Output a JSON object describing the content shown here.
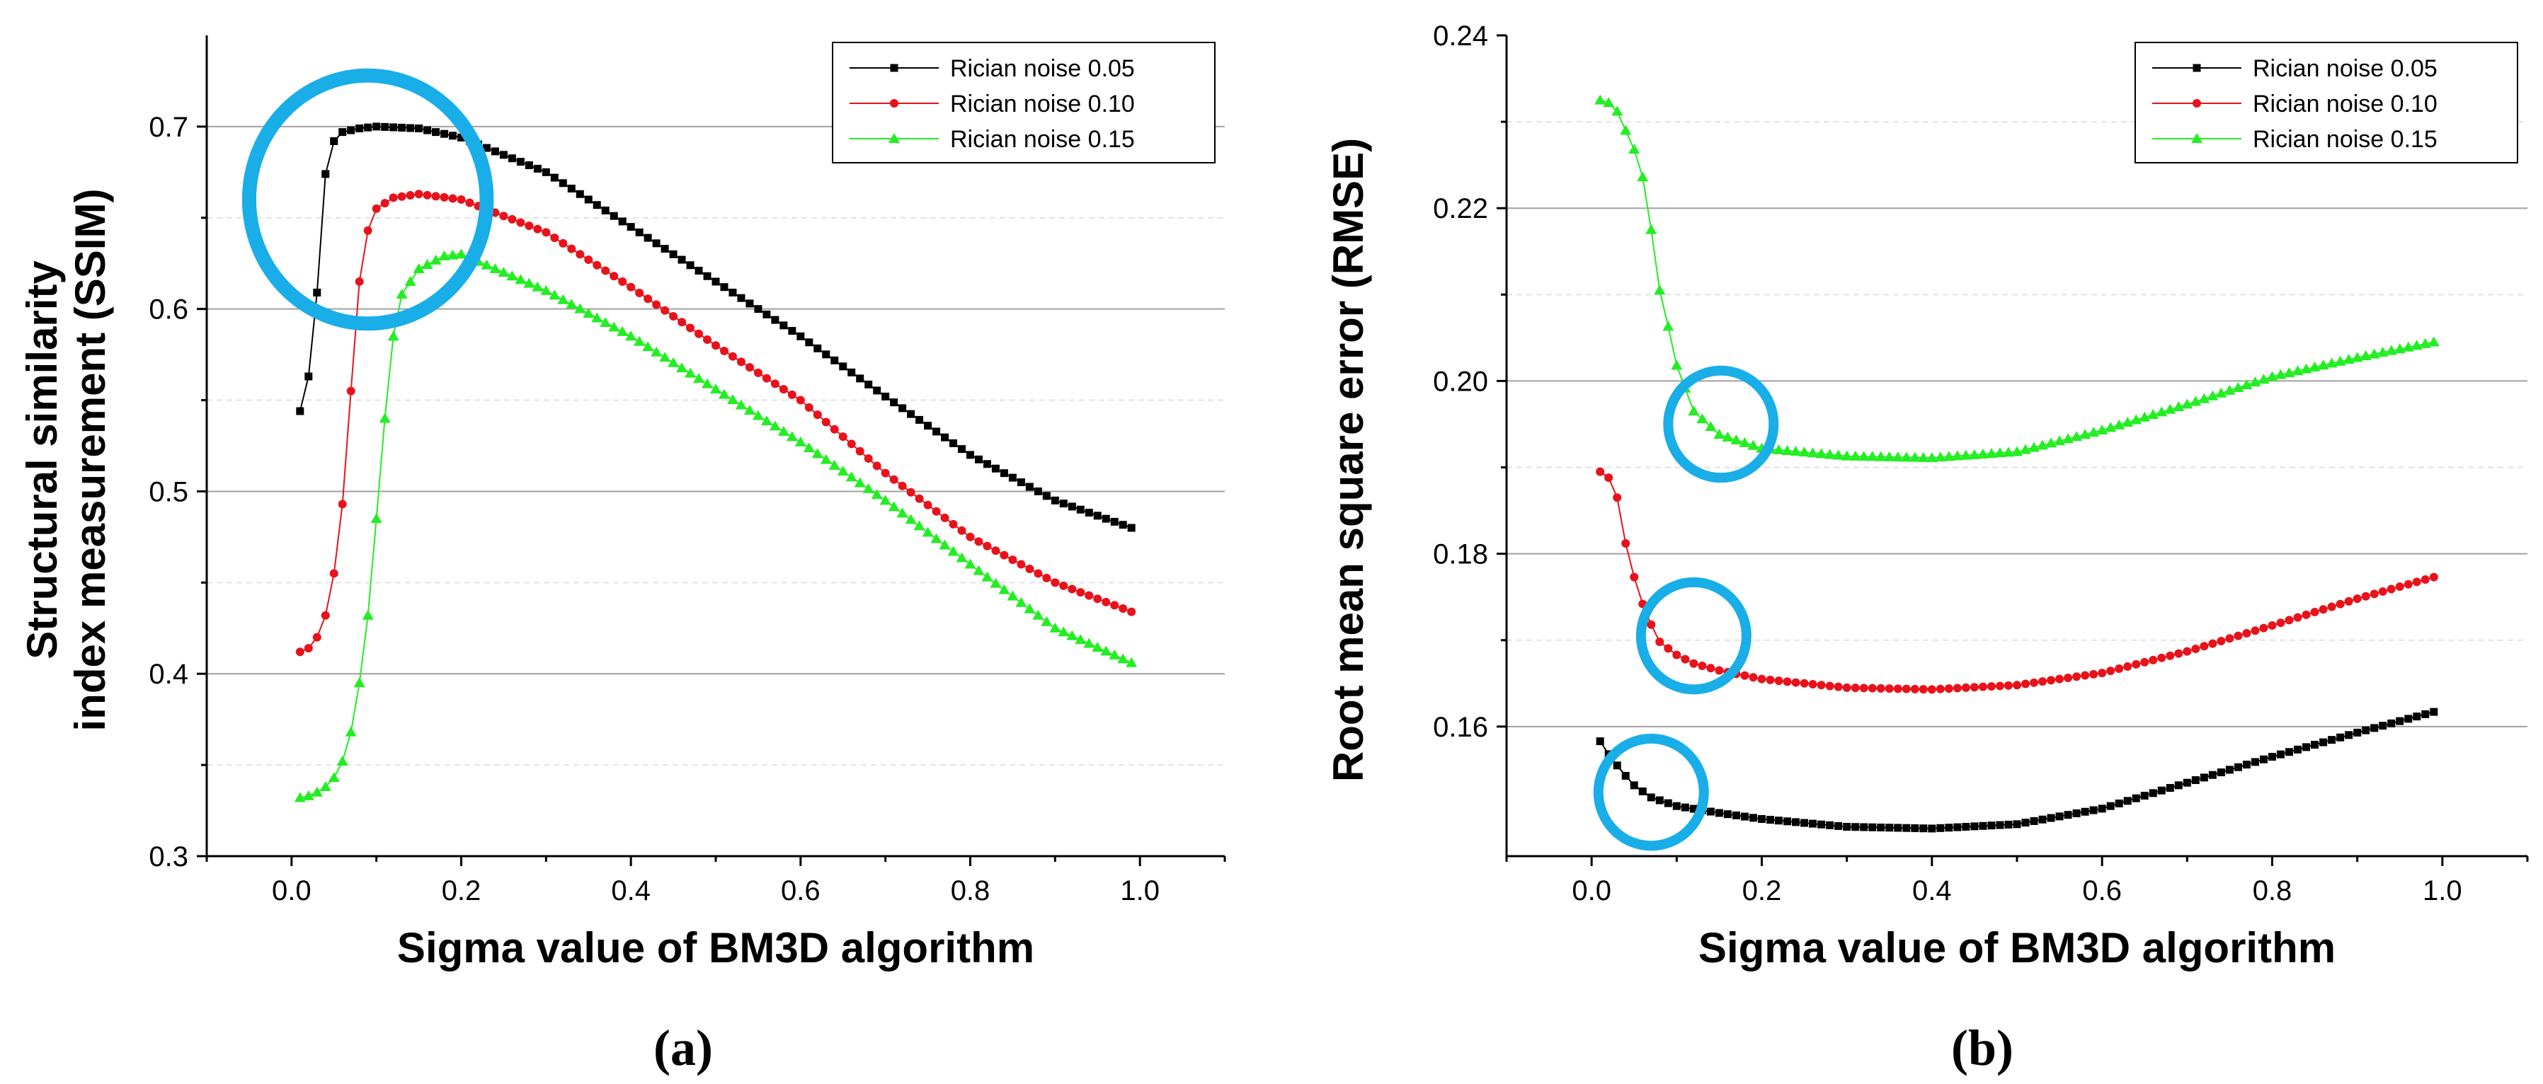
{
  "colors": {
    "series_a": "#000000",
    "series_b": "#e8121b",
    "series_c": "#22ee22",
    "highlight_circle": "#19aee8",
    "grid_major": "#a0a0a0",
    "grid_minor": "#e2e2e2"
  },
  "chart_data": [
    {
      "type": "line",
      "panel_label": "(a)",
      "xlabel": "Sigma value of BM3D algorithm",
      "ylabel_lines": [
        "Structural similarity",
        "index measurement (SSIM)"
      ],
      "xlim": [
        -0.1,
        1.1
      ],
      "ylim": [
        0.3,
        0.75
      ],
      "xticks": [
        0.0,
        0.2,
        0.4,
        0.6,
        0.8,
        1.0
      ],
      "xtick_labels": [
        "0.0",
        "0.2",
        "0.4",
        "0.6",
        "0.8",
        "1.0"
      ],
      "yticks": [
        0.3,
        0.4,
        0.5,
        0.6,
        0.7
      ],
      "ytick_labels": [
        "0.3",
        "0.4",
        "0.5",
        "0.6",
        "0.7"
      ],
      "grid": "horizontal",
      "legend_position": "top-right",
      "series": [
        {
          "name": "Rician noise 0.05",
          "marker": "square",
          "points": [
            [
              0.01,
              0.544
            ],
            [
              0.02,
              0.563
            ],
            [
              0.03,
              0.609
            ],
            [
              0.04,
              0.674
            ],
            [
              0.05,
              0.692
            ],
            [
              0.06,
              0.697
            ],
            [
              0.08,
              0.699
            ],
            [
              0.1,
              0.7
            ],
            [
              0.15,
              0.699
            ],
            [
              0.2,
              0.694
            ],
            [
              0.3,
              0.675
            ],
            [
              0.4,
              0.645
            ],
            [
              0.5,
              0.615
            ],
            [
              0.6,
              0.585
            ],
            [
              0.7,
              0.552
            ],
            [
              0.8,
              0.52
            ],
            [
              0.9,
              0.495
            ],
            [
              0.99,
              0.48
            ]
          ]
        },
        {
          "name": "Rician noise 0.10",
          "marker": "circle",
          "points": [
            [
              0.01,
              0.412
            ],
            [
              0.02,
              0.414
            ],
            [
              0.03,
              0.42
            ],
            [
              0.04,
              0.432
            ],
            [
              0.05,
              0.455
            ],
            [
              0.06,
              0.493
            ],
            [
              0.07,
              0.555
            ],
            [
              0.08,
              0.615
            ],
            [
              0.09,
              0.643
            ],
            [
              0.1,
              0.655
            ],
            [
              0.12,
              0.661
            ],
            [
              0.15,
              0.663
            ],
            [
              0.2,
              0.66
            ],
            [
              0.3,
              0.642
            ],
            [
              0.4,
              0.612
            ],
            [
              0.5,
              0.58
            ],
            [
              0.6,
              0.55
            ],
            [
              0.7,
              0.51
            ],
            [
              0.8,
              0.475
            ],
            [
              0.9,
              0.45
            ],
            [
              0.99,
              0.434
            ]
          ]
        },
        {
          "name": "Rician noise 0.15",
          "marker": "triangle",
          "points": [
            [
              0.01,
              0.332
            ],
            [
              0.02,
              0.333
            ],
            [
              0.03,
              0.335
            ],
            [
              0.04,
              0.338
            ],
            [
              0.05,
              0.343
            ],
            [
              0.06,
              0.352
            ],
            [
              0.07,
              0.368
            ],
            [
              0.08,
              0.395
            ],
            [
              0.09,
              0.432
            ],
            [
              0.1,
              0.485
            ],
            [
              0.11,
              0.54
            ],
            [
              0.12,
              0.585
            ],
            [
              0.13,
              0.608
            ],
            [
              0.15,
              0.622
            ],
            [
              0.18,
              0.629
            ],
            [
              0.2,
              0.63
            ],
            [
              0.3,
              0.61
            ],
            [
              0.4,
              0.585
            ],
            [
              0.5,
              0.556
            ],
            [
              0.6,
              0.527
            ],
            [
              0.7,
              0.495
            ],
            [
              0.8,
              0.46
            ],
            [
              0.9,
              0.425
            ],
            [
              0.99,
              0.406
            ]
          ]
        }
      ],
      "highlights": [
        {
          "shape": "circle",
          "cx": 0.09,
          "cy": 0.66,
          "rx_units": 0.14,
          "ry_units": 0.068
        }
      ]
    },
    {
      "type": "line",
      "panel_label": "(b)",
      "xlabel": "Sigma value of BM3D algorithm",
      "ylabel_lines": [
        "Root mean square error (RMSE)"
      ],
      "xlim": [
        -0.1,
        1.1
      ],
      "ylim": [
        0.145,
        0.24
      ],
      "xticks": [
        0.0,
        0.2,
        0.4,
        0.6,
        0.8,
        1.0
      ],
      "xtick_labels": [
        "0.0",
        "0.2",
        "0.4",
        "0.6",
        "0.8",
        "1.0"
      ],
      "yticks": [
        0.16,
        0.18,
        0.2,
        0.22,
        0.24
      ],
      "ytick_labels": [
        "0.16",
        "0.18",
        "0.20",
        "0.22",
        "0.24"
      ],
      "grid": "horizontal",
      "legend_position": "top-right",
      "series": [
        {
          "name": "Rician noise 0.05",
          "marker": "square",
          "points": [
            [
              0.01,
              0.1583
            ],
            [
              0.02,
              0.1568
            ],
            [
              0.03,
              0.1555
            ],
            [
              0.04,
              0.1543
            ],
            [
              0.05,
              0.1532
            ],
            [
              0.07,
              0.1518
            ],
            [
              0.1,
              0.1508
            ],
            [
              0.15,
              0.15
            ],
            [
              0.2,
              0.1493
            ],
            [
              0.3,
              0.1484
            ],
            [
              0.4,
              0.1482
            ],
            [
              0.5,
              0.1487
            ],
            [
              0.6,
              0.1505
            ],
            [
              0.7,
              0.1535
            ],
            [
              0.8,
              0.1565
            ],
            [
              0.9,
              0.1593
            ],
            [
              0.99,
              0.1617
            ]
          ]
        },
        {
          "name": "Rician noise 0.10",
          "marker": "circle",
          "points": [
            [
              0.01,
              0.1895
            ],
            [
              0.02,
              0.1888
            ],
            [
              0.03,
              0.1865
            ],
            [
              0.04,
              0.1812
            ],
            [
              0.05,
              0.1773
            ],
            [
              0.06,
              0.1742
            ],
            [
              0.07,
              0.1718
            ],
            [
              0.08,
              0.1698
            ],
            [
              0.1,
              0.1683
            ],
            [
              0.12,
              0.1673
            ],
            [
              0.15,
              0.1665
            ],
            [
              0.2,
              0.1655
            ],
            [
              0.3,
              0.1645
            ],
            [
              0.4,
              0.1643
            ],
            [
              0.5,
              0.1648
            ],
            [
              0.6,
              0.1662
            ],
            [
              0.7,
              0.1687
            ],
            [
              0.8,
              0.1717
            ],
            [
              0.9,
              0.1748
            ],
            [
              0.99,
              0.1773
            ]
          ]
        },
        {
          "name": "Rician noise 0.15",
          "marker": "triangle",
          "points": [
            [
              0.01,
              0.2325
            ],
            [
              0.02,
              0.2322
            ],
            [
              0.03,
              0.2312
            ],
            [
              0.04,
              0.229
            ],
            [
              0.05,
              0.2268
            ],
            [
              0.06,
              0.2236
            ],
            [
              0.07,
              0.2175
            ],
            [
              0.08,
              0.2105
            ],
            [
              0.09,
              0.2063
            ],
            [
              0.1,
              0.2018
            ],
            [
              0.12,
              0.1965
            ],
            [
              0.15,
              0.1938
            ],
            [
              0.2,
              0.1922
            ],
            [
              0.3,
              0.1913
            ],
            [
              0.4,
              0.1911
            ],
            [
              0.5,
              0.1918
            ],
            [
              0.6,
              0.1943
            ],
            [
              0.7,
              0.1973
            ],
            [
              0.8,
              0.2005
            ],
            [
              0.9,
              0.2027
            ],
            [
              0.99,
              0.2045
            ]
          ]
        }
      ],
      "highlights": [
        {
          "shape": "circle",
          "cx": 0.152,
          "cy": 0.195,
          "rx_units": 0.062,
          "ry_units": 0.0062
        },
        {
          "shape": "circle",
          "cx": 0.12,
          "cy": 0.1705,
          "rx_units": 0.062,
          "ry_units": 0.0062
        },
        {
          "shape": "circle",
          "cx": 0.07,
          "cy": 0.1524,
          "rx_units": 0.062,
          "ry_units": 0.0062
        }
      ]
    }
  ]
}
